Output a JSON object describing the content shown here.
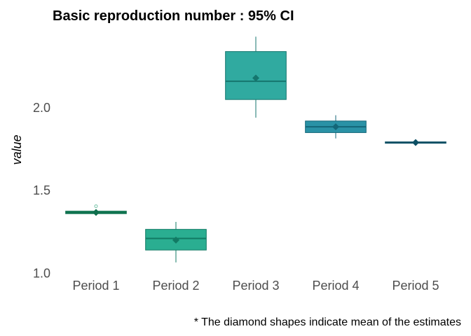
{
  "chart_data": {
    "type": "box",
    "title": "Basic reproduction number : 95% CI",
    "ylabel": "value",
    "xlabel": "",
    "caption": "* The diamond shapes indicate mean of the estimates",
    "ylim": [
      0.98,
      2.44
    ],
    "yticks": [
      1.0,
      1.5,
      2.0
    ],
    "ytick_labels": [
      "1.0",
      "1.5",
      "2.0"
    ],
    "grid": false,
    "categories": [
      "Period 1",
      "Period 2",
      "Period 3",
      "Period 4",
      "Period 5"
    ],
    "boxes": [
      {
        "category": "Period 1",
        "whisker_low": 1.358,
        "q1": 1.36,
        "median": 1.367,
        "q3": 1.375,
        "whisker_high": 1.38,
        "mean": 1.367,
        "outliers": [
          1.405
        ],
        "color": "#1a9a6c",
        "dark": "#0e6e4c"
      },
      {
        "category": "Period 2",
        "whisker_low": 1.065,
        "q1": 1.14,
        "median": 1.21,
        "q3": 1.265,
        "whisker_high": 1.31,
        "mean": 1.2,
        "outliers": [],
        "color": "#2aae91",
        "dark": "#127a64"
      },
      {
        "category": "Period 3",
        "whisker_low": 1.94,
        "q1": 2.05,
        "median": 2.16,
        "q3": 2.34,
        "whisker_high": 2.43,
        "mean": 2.18,
        "outliers": [],
        "color": "#30aaa0",
        "dark": "#15766e"
      },
      {
        "category": "Period 4",
        "whisker_low": 1.815,
        "q1": 1.85,
        "median": 1.885,
        "q3": 1.92,
        "whisker_high": 1.955,
        "mean": 1.885,
        "outliers": [],
        "color": "#2a92a6",
        "dark": "#146678"
      },
      {
        "category": "Period 5",
        "whisker_low": 1.785,
        "q1": 1.787,
        "median": 1.79,
        "q3": 1.794,
        "whisker_high": 1.796,
        "mean": 1.79,
        "outliers": [],
        "color": "#1d6f87",
        "dark": "#0c4f64"
      }
    ]
  }
}
